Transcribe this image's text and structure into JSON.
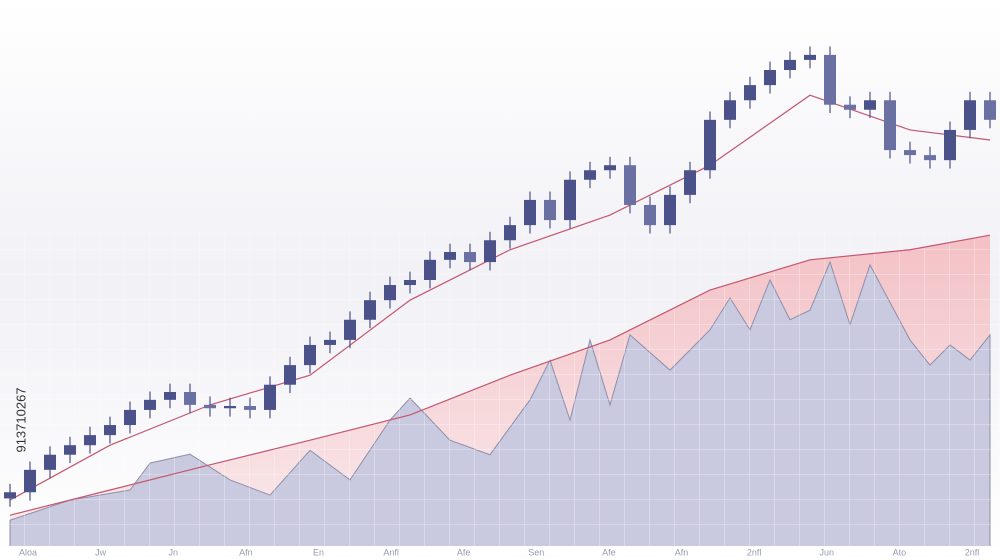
{
  "chart_data": {
    "type": "candlestick",
    "watermark_id": "913710267",
    "xtick_labels": [
      "Aloa",
      "Jw",
      "Jn",
      "Afn",
      "En",
      "Anfl",
      "Afe",
      "Sen",
      "Afe",
      "Afn",
      "2nfl",
      "Jun",
      "Ato",
      "2nfl"
    ],
    "ylim": [
      0,
      100
    ],
    "color": "#4b5189",
    "open": [
      11.0,
      12.1,
      16.1,
      18.8,
      20.5,
      22.3,
      24.1,
      26.8,
      28.6,
      30.0,
      27.7,
      27.1,
      27.5,
      26.8,
      31.3,
      34.8,
      38.4,
      39.3,
      42.9,
      46.4,
      49.1,
      50.0,
      53.6,
      55.0,
      53.2,
      57.1,
      59.8,
      64.3,
      60.7,
      67.9,
      69.6,
      70.5,
      63.4,
      59.8,
      65.2,
      69.6,
      78.6,
      82.1,
      84.8,
      87.5,
      89.3,
      90.2,
      81.3,
      80.4,
      82.1,
      73.2,
      72.3,
      71.4,
      76.8,
      82.1
    ],
    "high": [
      13.6,
      17.6,
      20.3,
      22.0,
      23.8,
      25.6,
      28.3,
      30.1,
      31.5,
      31.5,
      29.2,
      29.0,
      29.0,
      32.8,
      36.3,
      39.9,
      40.8,
      44.4,
      47.9,
      50.6,
      51.5,
      55.1,
      56.5,
      56.5,
      58.6,
      61.3,
      65.8,
      65.8,
      69.4,
      71.1,
      72.0,
      72.0,
      64.9,
      66.7,
      71.1,
      80.1,
      83.6,
      86.3,
      89.0,
      90.8,
      91.7,
      91.7,
      82.8,
      83.6,
      83.6,
      74.7,
      73.8,
      78.3,
      83.6,
      83.6
    ],
    "low": [
      9.5,
      10.6,
      14.6,
      17.3,
      19.0,
      20.8,
      22.6,
      25.3,
      27.1,
      26.2,
      25.6,
      25.6,
      25.3,
      25.3,
      29.8,
      33.3,
      36.9,
      37.8,
      41.4,
      44.9,
      47.6,
      48.5,
      52.1,
      51.7,
      51.7,
      55.6,
      58.3,
      59.2,
      59.2,
      66.4,
      68.1,
      61.9,
      58.3,
      58.3,
      63.7,
      68.1,
      77.1,
      80.6,
      83.3,
      86.0,
      87.8,
      79.8,
      78.9,
      78.9,
      71.7,
      70.8,
      69.9,
      69.9,
      75.3,
      77.1
    ],
    "close": [
      12.1,
      16.1,
      18.8,
      20.5,
      22.3,
      24.1,
      26.8,
      28.6,
      30.0,
      27.7,
      27.1,
      27.5,
      26.8,
      31.3,
      34.8,
      38.4,
      39.3,
      42.9,
      46.4,
      49.1,
      50.0,
      53.6,
      55.0,
      53.2,
      57.1,
      59.8,
      64.3,
      60.7,
      67.9,
      69.6,
      70.5,
      63.4,
      59.8,
      65.2,
      69.6,
      78.6,
      82.1,
      84.8,
      87.5,
      89.3,
      90.2,
      81.3,
      80.4,
      82.1,
      73.2,
      72.3,
      71.4,
      76.8,
      82.1,
      78.6
    ],
    "lines": [
      {
        "color": "#c4566f",
        "x": [
          0,
          5,
          10,
          15,
          20,
          25,
          30,
          35,
          40,
          45,
          49
        ],
        "values": [
          10.7,
          20.5,
          27.7,
          33.0,
          46.4,
          55.4,
          61.6,
          70.5,
          83.0,
          76.8,
          75.0
        ]
      },
      {
        "color": "#c4566f",
        "x": [
          0,
          5,
          10,
          15,
          20,
          25,
          30,
          35,
          40,
          45,
          49
        ],
        "values": [
          8.0,
          12.5,
          17.0,
          21.4,
          25.9,
          33.0,
          39.3,
          48.2,
          53.6,
          55.4,
          58.0
        ]
      }
    ],
    "area": {
      "color": "#c9cadf",
      "x": [
        0,
        3,
        6,
        7,
        9,
        11,
        13,
        15,
        17,
        19,
        20,
        22,
        24,
        26,
        27,
        28,
        29,
        30,
        31,
        33,
        35,
        36,
        37,
        38,
        39,
        40,
        41,
        42,
        43,
        45,
        46,
        47,
        48,
        49
      ],
      "values": [
        7.1,
        10.7,
        12.5,
        17.3,
        18.9,
        14.3,
        11.6,
        19.6,
        14.3,
        25.0,
        28.9,
        21.4,
        18.8,
        28.6,
        35.7,
        25.0,
        39.3,
        27.7,
        40.2,
        33.9,
        41.1,
        46.8,
        41.1,
        50.0,
        42.9,
        44.6,
        53.2,
        42.0,
        52.7,
        39.3,
        34.8,
        38.4,
        35.7,
        40.2
      ]
    }
  }
}
